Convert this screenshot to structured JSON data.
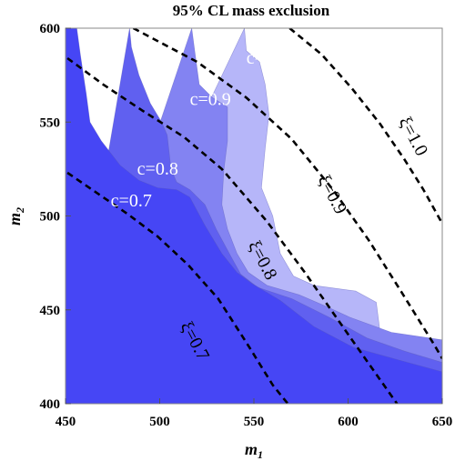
{
  "chart_data": {
    "type": "contour",
    "title": "95% CL mass exclusion",
    "xlabel": "m",
    "xlabel_sub": "1",
    "ylabel": "m",
    "ylabel_sub": "2",
    "xlim": [
      450,
      650
    ],
    "ylim": [
      400,
      600
    ],
    "xticks": [
      450,
      500,
      550,
      600,
      650
    ],
    "yticks": [
      400,
      450,
      500,
      550,
      600
    ],
    "fill_colors": [
      "#4646f5",
      "#6060f0",
      "#8383f2",
      "#b6b6f9"
    ],
    "regions": [
      {
        "label": "c=0.7",
        "label_at": [
          474,
          505
        ],
        "boundary": [
          [
            450,
            600
          ],
          [
            456,
            600
          ],
          [
            458,
            585
          ],
          [
            461,
            565
          ],
          [
            463,
            550
          ],
          [
            469,
            540
          ],
          [
            479,
            527
          ],
          [
            489,
            519
          ],
          [
            499,
            515
          ],
          [
            509,
            514
          ],
          [
            516,
            510
          ],
          [
            524,
            495
          ],
          [
            533,
            480
          ],
          [
            541,
            470
          ],
          [
            549,
            464
          ],
          [
            564,
            455
          ],
          [
            582,
            441
          ],
          [
            603,
            430
          ],
          [
            628,
            423
          ],
          [
            650,
            417
          ]
        ]
      },
      {
        "label": "c=0.8",
        "label_at": [
          488,
          522
        ],
        "boundary": [
          [
            484,
            600
          ],
          [
            485,
            590
          ],
          [
            489,
            575
          ],
          [
            495,
            560
          ],
          [
            501,
            550
          ],
          [
            504,
            543
          ],
          [
            506,
            525
          ],
          [
            509,
            518
          ],
          [
            516,
            514
          ],
          [
            524,
            506
          ],
          [
            530,
            493
          ],
          [
            538,
            478
          ],
          [
            543,
            469
          ],
          [
            552,
            462
          ],
          [
            570,
            456
          ],
          [
            590,
            446
          ],
          [
            610,
            435
          ],
          [
            630,
            428
          ],
          [
            650,
            422
          ]
        ]
      },
      {
        "label": "c=0.9",
        "label_at": [
          516,
          559
        ],
        "boundary": [
          [
            517,
            600
          ],
          [
            519,
            585
          ],
          [
            521,
            570
          ],
          [
            528,
            563
          ],
          [
            536,
            558
          ],
          [
            536,
            540
          ],
          [
            534,
            524
          ],
          [
            533,
            506
          ],
          [
            536,
            493
          ],
          [
            541,
            480
          ],
          [
            547,
            470
          ],
          [
            557,
            463
          ],
          [
            574,
            458
          ],
          [
            588,
            452
          ],
          [
            601,
            446
          ],
          [
            623,
            438
          ],
          [
            650,
            434
          ]
        ]
      },
      {
        "label": "c=1.0",
        "label_at": [
          546,
          581
        ],
        "boundary": [
          [
            545,
            600
          ],
          [
            546,
            588
          ],
          [
            553,
            582
          ],
          [
            556,
            570
          ],
          [
            558,
            554
          ],
          [
            556,
            536
          ],
          [
            554,
            515
          ],
          [
            560,
            500
          ],
          [
            564,
            480
          ],
          [
            571,
            468
          ],
          [
            582,
            463
          ],
          [
            604,
            460
          ],
          [
            615,
            454
          ],
          [
            617,
            438
          ],
          [
            622,
            426
          ],
          [
            636,
            422
          ],
          [
            650,
            418
          ]
        ]
      }
    ],
    "exclusion_lines": [
      {
        "label": "ξ=0.7",
        "label_at": [
          516,
          432
        ],
        "label_angle": 62,
        "points": [
          [
            451,
            523
          ],
          [
            467,
            512
          ],
          [
            483,
            501
          ],
          [
            499,
            489
          ],
          [
            515,
            474
          ],
          [
            531,
            456
          ],
          [
            547,
            431
          ],
          [
            560,
            410
          ],
          [
            568,
            400
          ]
        ]
      },
      {
        "label": "ξ=0.8",
        "label_at": [
          552,
          475
        ],
        "label_angle": 62,
        "points": [
          [
            451,
            584
          ],
          [
            470,
            570
          ],
          [
            491,
            556
          ],
          [
            513,
            542
          ],
          [
            533,
            525
          ],
          [
            557,
            497
          ],
          [
            577,
            470
          ],
          [
            600,
            437
          ],
          [
            626,
            400
          ]
        ]
      },
      {
        "label": "ξ=0.9",
        "label_at": [
          589,
          510
        ],
        "label_angle": 62,
        "points": [
          [
            486,
            600
          ],
          [
            520,
            582
          ],
          [
            546,
            563
          ],
          [
            570,
            541
          ],
          [
            592,
            514
          ],
          [
            611,
            487
          ],
          [
            628,
            460
          ],
          [
            646,
            431
          ],
          [
            650,
            424
          ]
        ]
      },
      {
        "label": "ξ=1.0",
        "label_at": [
          632,
          541
        ],
        "label_angle": 62,
        "points": [
          [
            569,
            600
          ],
          [
            586,
            586
          ],
          [
            602,
            568
          ],
          [
            617,
            549
          ],
          [
            630,
            530
          ],
          [
            640,
            514
          ],
          [
            650,
            496
          ]
        ]
      }
    ]
  }
}
